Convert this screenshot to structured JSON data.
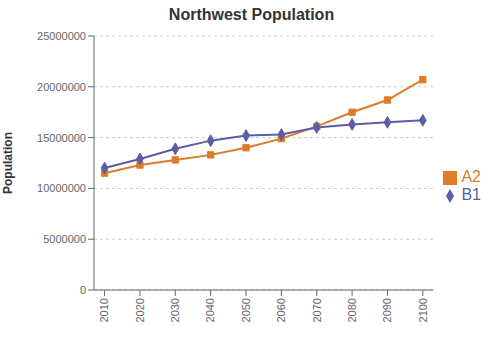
{
  "chart_data": {
    "type": "line",
    "title": "Northwest Population",
    "ylabel": "Population",
    "x": [
      2010,
      2020,
      2030,
      2040,
      2050,
      2060,
      2070,
      2080,
      2090,
      2100
    ],
    "xlim": [
      2007,
      2103
    ],
    "xticks": [
      2010,
      2020,
      2030,
      2040,
      2050,
      2060,
      2070,
      2080,
      2090,
      2100
    ],
    "series": [
      {
        "name": "A2",
        "color": "#E07B2A",
        "marker": "square",
        "values": [
          11500000,
          12300000,
          12800000,
          13300000,
          14000000,
          14900000,
          16100000,
          17500000,
          18700000,
          20700000
        ]
      },
      {
        "name": "B1",
        "color": "#5B5EA6",
        "marker": "diamond",
        "values": [
          12000000,
          12900000,
          13900000,
          14700000,
          15200000,
          15300000,
          16000000,
          16300000,
          16500000,
          16700000
        ]
      }
    ],
    "ylim": [
      0,
      25000000
    ],
    "yticks": [
      0,
      5000000,
      10000000,
      15000000,
      20000000,
      25000000
    ],
    "grid": true,
    "legend": "right"
  }
}
